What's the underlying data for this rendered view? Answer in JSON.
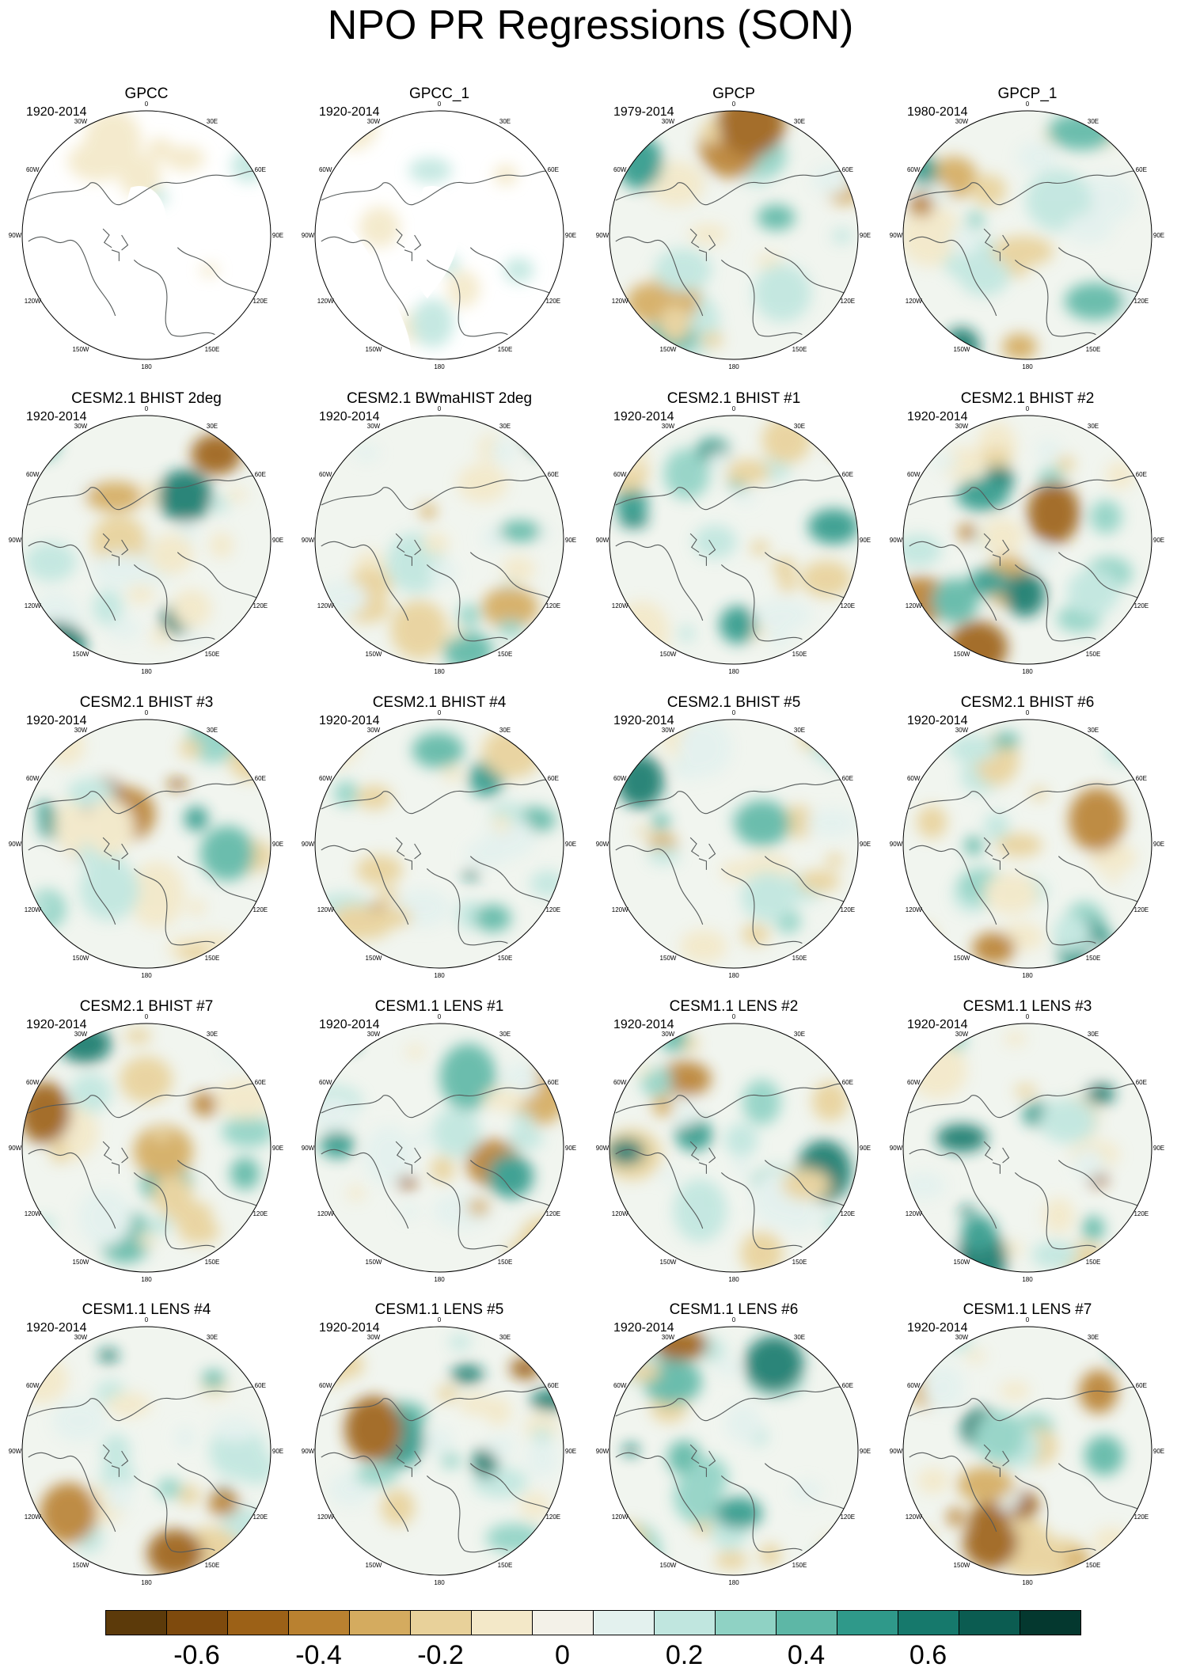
{
  "title": "NPO PR Regressions (SON)",
  "panels": [
    {
      "title": "GPCC",
      "period": "1920-2014",
      "style": "obs-mask"
    },
    {
      "title": "GPCC_1",
      "period": "1920-2014",
      "style": "obs-mask"
    },
    {
      "title": "GPCP",
      "period": "1979-2014",
      "style": "obs-strong"
    },
    {
      "title": "GPCP_1",
      "period": "1980-2014",
      "style": "obs-strong"
    },
    {
      "title": "CESM2.1 BHIST 2deg",
      "period": "1920-2014",
      "style": "model"
    },
    {
      "title": "CESM2.1 BWmaHIST 2deg",
      "period": "1920-2014",
      "style": "model"
    },
    {
      "title": "CESM2.1 BHIST #1",
      "period": "1920-2014",
      "style": "model"
    },
    {
      "title": "CESM2.1 BHIST #2",
      "period": "1920-2014",
      "style": "model"
    },
    {
      "title": "CESM2.1 BHIST #3",
      "period": "1920-2014",
      "style": "model"
    },
    {
      "title": "CESM2.1 BHIST #4",
      "period": "1920-2014",
      "style": "model"
    },
    {
      "title": "CESM2.1 BHIST #5",
      "period": "1920-2014",
      "style": "model"
    },
    {
      "title": "CESM2.1 BHIST #6",
      "period": "1920-2014",
      "style": "model"
    },
    {
      "title": "CESM2.1 BHIST #7",
      "period": "1920-2014",
      "style": "model"
    },
    {
      "title": "CESM1.1 LENS #1",
      "period": "1920-2014",
      "style": "model"
    },
    {
      "title": "CESM1.1 LENS #2",
      "period": "1920-2014",
      "style": "model"
    },
    {
      "title": "CESM1.1 LENS #3",
      "period": "1920-2014",
      "style": "model"
    },
    {
      "title": "CESM1.1 LENS #4",
      "period": "1920-2014",
      "style": "model"
    },
    {
      "title": "CESM1.1 LENS #5",
      "period": "1920-2014",
      "style": "model"
    },
    {
      "title": "CESM1.1 LENS #6",
      "period": "1920-2014",
      "style": "model"
    },
    {
      "title": "CESM1.1 LENS #7",
      "period": "1920-2014",
      "style": "model"
    }
  ],
  "longitude_labels": [
    {
      "text": "180",
      "lon": 180
    },
    {
      "text": "150E",
      "lon": 150
    },
    {
      "text": "120E",
      "lon": 120
    },
    {
      "text": "90E",
      "lon": 90
    },
    {
      "text": "60E",
      "lon": 60
    },
    {
      "text": "30E",
      "lon": 30
    },
    {
      "text": "0",
      "lon": 0
    },
    {
      "text": "30W",
      "lon": -30
    },
    {
      "text": "60W",
      "lon": -60
    },
    {
      "text": "90W",
      "lon": -90
    },
    {
      "text": "120W",
      "lon": -120
    },
    {
      "text": "150W",
      "lon": -150
    }
  ],
  "colorbar": {
    "colors": [
      "#5c3a0a",
      "#7e4a0d",
      "#9c6117",
      "#b98130",
      "#d4ab5f",
      "#e8d19a",
      "#f3e8c8",
      "#f3f1e8",
      "#e3f1ee",
      "#c0e6df",
      "#8fd2c4",
      "#5db7a6",
      "#2f998a",
      "#16796c",
      "#0b5c51",
      "#04382f"
    ],
    "labels": [
      "-0.6",
      "-0.4",
      "-0.2",
      "0",
      "0.2",
      "0.4",
      "0.6"
    ],
    "label_boundaries": [
      2,
      4,
      6,
      8,
      10,
      12,
      14
    ]
  }
}
